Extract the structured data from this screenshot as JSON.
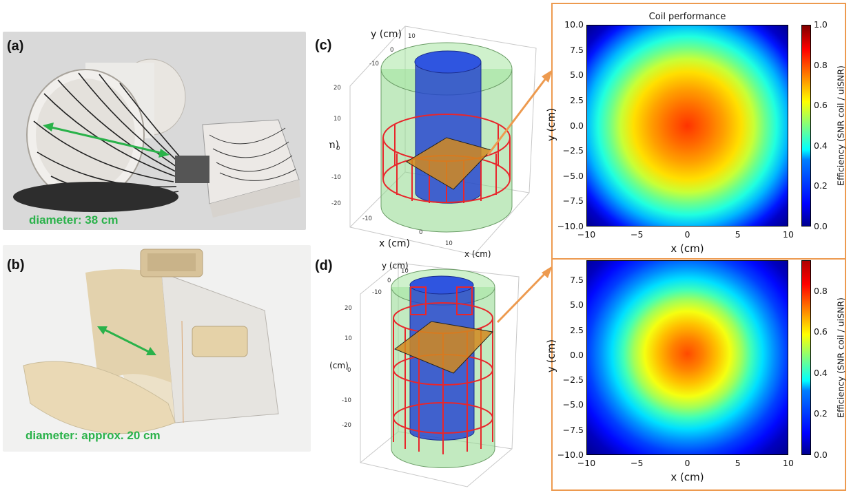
{
  "panels": {
    "a": {
      "label": "(a)",
      "diameter_text": "diameter: 38 cm"
    },
    "b": {
      "label": "(b)",
      "diameter_text": "diameter: approx. 20 cm"
    },
    "c": {
      "label": "(c)",
      "xlabel": "x (cm)",
      "ylabel": "y (cm)",
      "zlabel": "z (cm)",
      "z_ticks": [
        "20",
        "10",
        "0",
        "-10",
        "-20"
      ],
      "x_ticks": [
        "-10",
        "0",
        "10"
      ],
      "y_ticks": [
        "10",
        "0",
        "-10"
      ]
    },
    "d": {
      "label": "(d)",
      "ylabel": "y (cm)",
      "zlabel": "z (cm)",
      "z_ticks": [
        "20",
        "10",
        "0",
        "-10",
        "-20"
      ],
      "y_ticks": [
        "10",
        "0",
        "-10"
      ]
    }
  },
  "colors": {
    "accent_frame": "#ed9a4f",
    "arrow_green": "#2ab24a",
    "coil_red": "#e8262b",
    "cylinder_blue": "#1f3fd0",
    "outer_green": "#8fd98c"
  },
  "chart_data": [
    {
      "type": "heatmap",
      "title": "Coil performance",
      "xlabel": "x (cm)",
      "ylabel": "y (cm)",
      "xlim": [
        -10,
        10
      ],
      "ylim": [
        -10,
        10
      ],
      "x_ticks": [
        "−10",
        "−5",
        "0",
        "5",
        "10"
      ],
      "y_ticks": [
        "10.0",
        "7.5",
        "5.0",
        "2.5",
        "0.0",
        "−2.5",
        "−5.0",
        "−7.5",
        "−10.0"
      ],
      "colorbar_label": "Efficiency (SNR coil / uiSNR)",
      "colorbar_ticks": [
        "1.0",
        "0.8",
        "0.6",
        "0.4",
        "0.2",
        "0.0"
      ],
      "colorbar_range": [
        0,
        1
      ],
      "peak_value": 0.82,
      "colormap": "jet"
    },
    {
      "type": "heatmap",
      "title": "",
      "xlabel": "x (cm)",
      "ylabel": "y (cm)",
      "xlim": [
        -10,
        10
      ],
      "ylim": [
        -10,
        10
      ],
      "x_ticks": [
        "−10",
        "−5",
        "0",
        "5",
        "10"
      ],
      "y_ticks": [
        "7.5",
        "5.0",
        "2.5",
        "0.0",
        "−2.5",
        "−5.0",
        "−7.5",
        "−10.0"
      ],
      "colorbar_label": "Efficiency (SNR coil / uiSNR)",
      "colorbar_ticks": [
        "0.8",
        "0.6",
        "0.4",
        "0.2",
        "0.0"
      ],
      "colorbar_range": [
        0,
        0.95
      ],
      "peak_value": 0.8,
      "colormap": "jet"
    }
  ]
}
